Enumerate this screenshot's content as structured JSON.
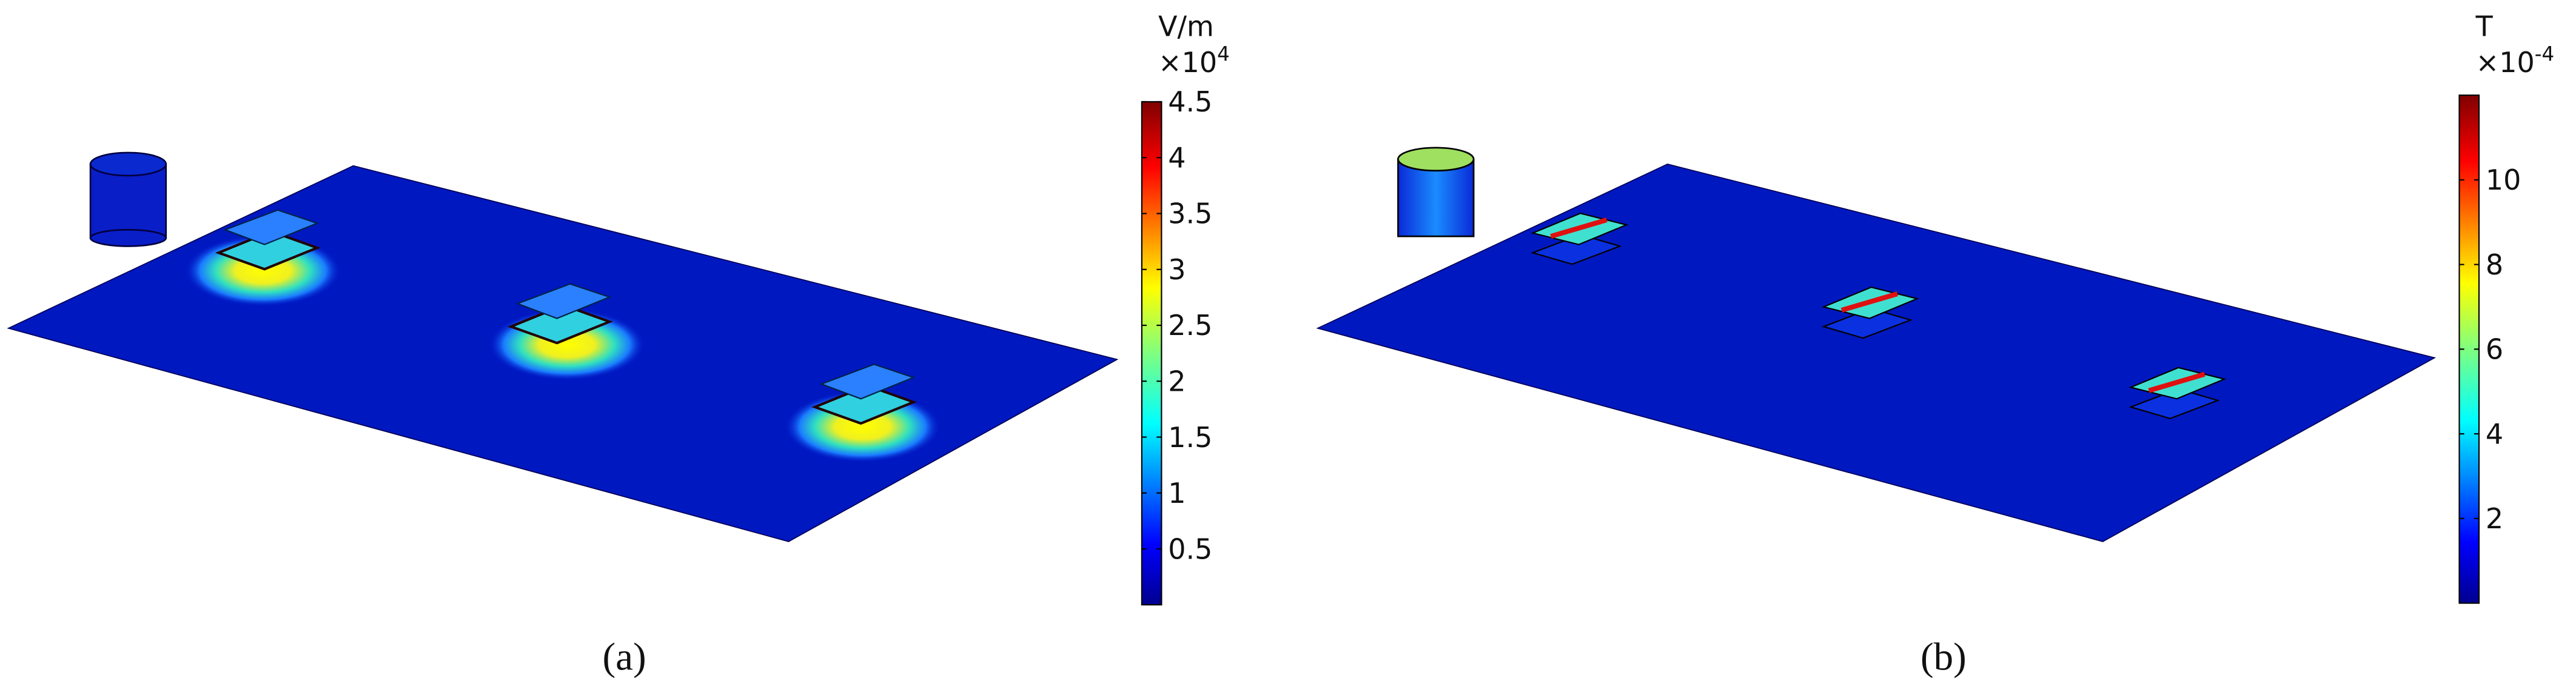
{
  "panels": [
    {
      "label": "(a)",
      "colorbar": {
        "unit": "V/m",
        "multiplier": "×10",
        "exponent": "4",
        "lim": [
          0,
          4.5
        ],
        "ticks": [
          0.5,
          1,
          1.5,
          2,
          2.5,
          3,
          3.5,
          4,
          4.5
        ]
      }
    },
    {
      "label": "(b)",
      "colorbar": {
        "unit": "T",
        "multiplier": "×10",
        "exponent": "-4",
        "lim": [
          0,
          12
        ],
        "ticks": [
          2,
          4,
          6,
          8,
          10
        ]
      }
    }
  ]
}
